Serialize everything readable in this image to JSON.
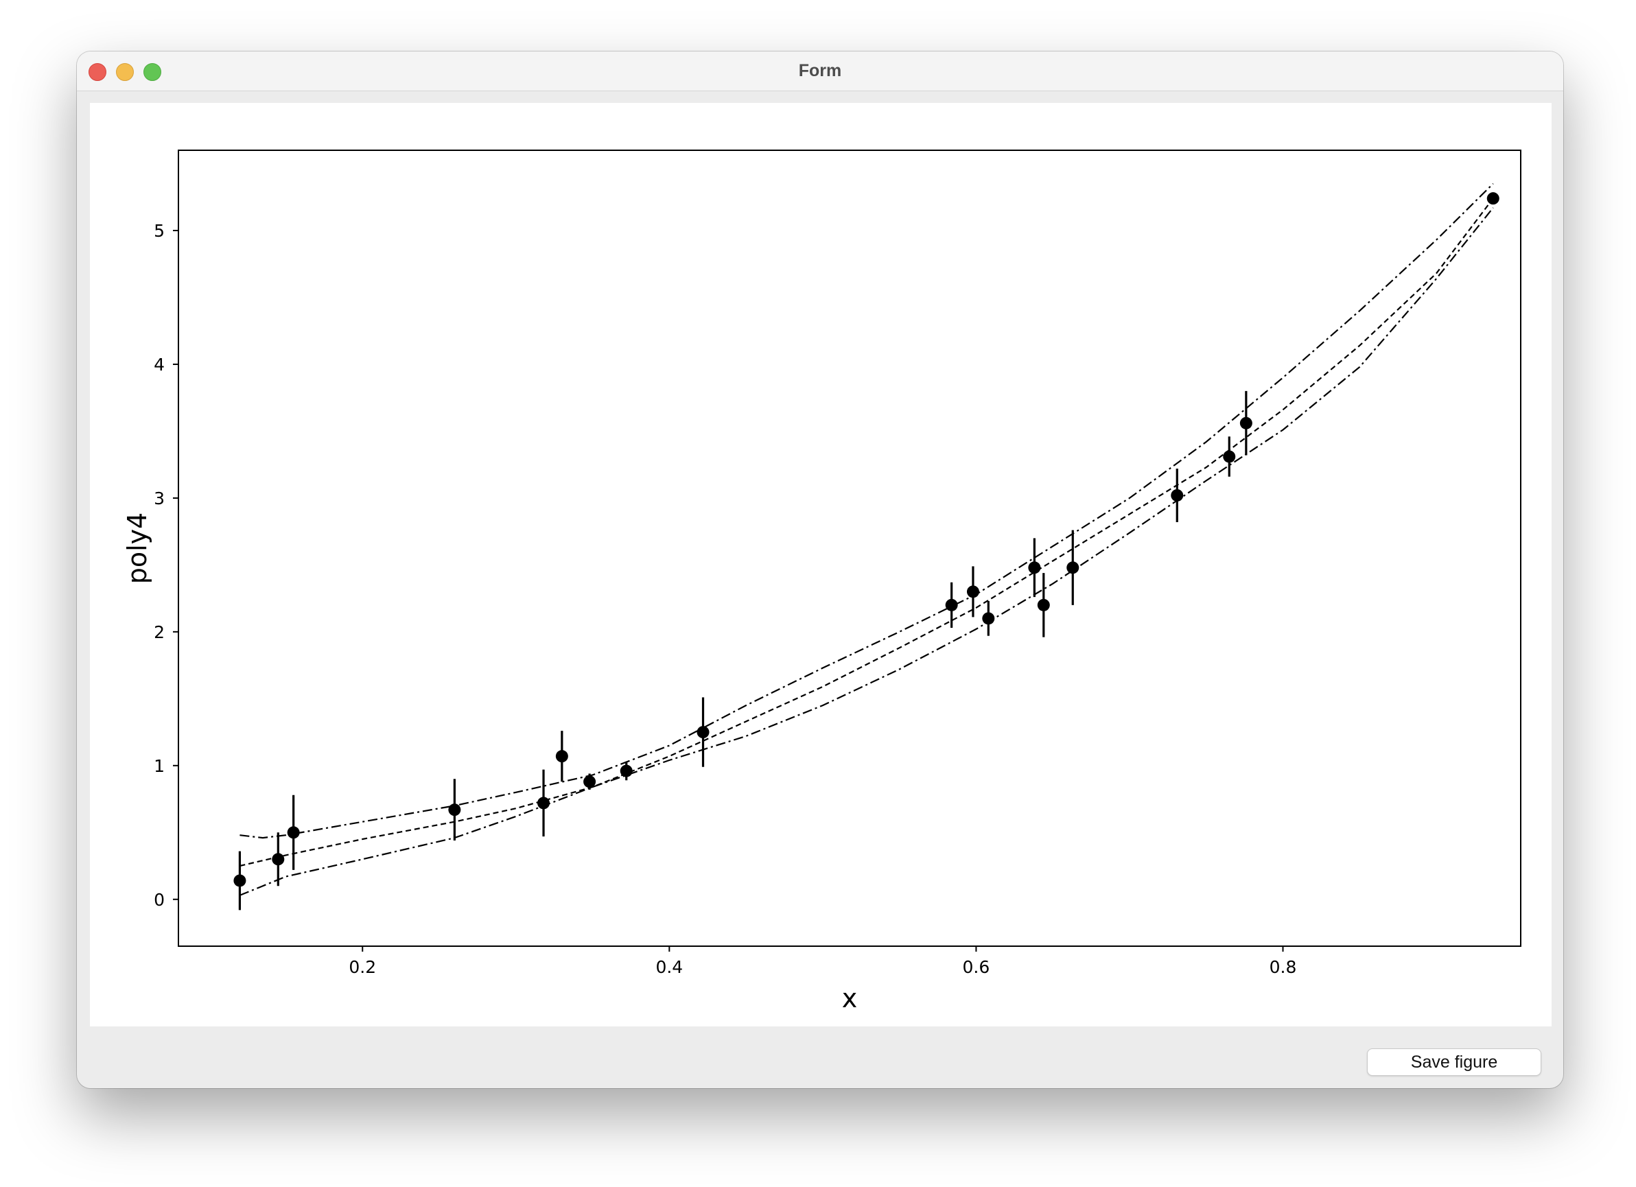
{
  "window": {
    "title": "Form",
    "save_button_label": "Save figure"
  },
  "chart_data": {
    "type": "scatter",
    "xlabel": "x",
    "ylabel": "poly4",
    "xlim": [
      0.08,
      0.955
    ],
    "ylim": [
      -0.35,
      5.6
    ],
    "xticks": [
      0.2,
      0.4,
      0.6,
      0.8
    ],
    "xtick_labels": [
      "0.2",
      "0.4",
      "0.6",
      "0.8"
    ],
    "yticks": [
      0,
      1,
      2,
      3,
      4,
      5
    ],
    "ytick_labels": [
      "0",
      "1",
      "2",
      "3",
      "4",
      "5"
    ],
    "grid": false,
    "points": {
      "x": [
        0.12,
        0.145,
        0.155,
        0.26,
        0.318,
        0.33,
        0.348,
        0.372,
        0.422,
        0.584,
        0.598,
        0.608,
        0.638,
        0.644,
        0.663,
        0.731,
        0.765,
        0.776,
        0.937
      ],
      "y": [
        0.14,
        0.3,
        0.5,
        0.67,
        0.72,
        1.07,
        0.88,
        0.96,
        1.25,
        2.2,
        2.3,
        2.1,
        2.48,
        2.2,
        2.48,
        3.02,
        3.31,
        3.56,
        5.24
      ],
      "yerr": [
        0.22,
        0.2,
        0.28,
        0.23,
        0.25,
        0.19,
        0.06,
        0.07,
        0.26,
        0.17,
        0.19,
        0.13,
        0.22,
        0.24,
        0.28,
        0.2,
        0.15,
        0.24,
        0.04
      ]
    },
    "fit_curves": [
      {
        "style": "dashed",
        "x": [
          0.12,
          0.15,
          0.2,
          0.26,
          0.3,
          0.35,
          0.4,
          0.45,
          0.5,
          0.55,
          0.6,
          0.65,
          0.7,
          0.75,
          0.8,
          0.85,
          0.9,
          0.937
        ],
        "y": [
          0.25,
          0.33,
          0.45,
          0.58,
          0.68,
          0.84,
          1.07,
          1.33,
          1.59,
          1.88,
          2.18,
          2.53,
          2.88,
          3.23,
          3.66,
          4.14,
          4.68,
          5.24
        ]
      },
      {
        "style": "dashdot",
        "x": [
          0.12,
          0.135,
          0.15,
          0.2,
          0.26,
          0.3,
          0.35,
          0.4,
          0.45,
          0.5,
          0.55,
          0.6,
          0.65,
          0.7,
          0.75,
          0.8,
          0.85,
          0.9,
          0.937
        ],
        "y": [
          0.48,
          0.46,
          0.48,
          0.58,
          0.7,
          0.8,
          0.93,
          1.15,
          1.45,
          1.73,
          2.0,
          2.28,
          2.64,
          3.0,
          3.42,
          3.9,
          4.4,
          4.93,
          5.35
        ]
      },
      {
        "style": "dashdot",
        "x": [
          0.12,
          0.15,
          0.2,
          0.26,
          0.3,
          0.35,
          0.4,
          0.45,
          0.5,
          0.55,
          0.6,
          0.65,
          0.7,
          0.75,
          0.8,
          0.85,
          0.9,
          0.937
        ],
        "y": [
          0.03,
          0.17,
          0.3,
          0.46,
          0.62,
          0.84,
          1.04,
          1.22,
          1.45,
          1.72,
          2.02,
          2.36,
          2.74,
          3.13,
          3.51,
          3.98,
          4.64,
          5.17
        ]
      }
    ]
  }
}
